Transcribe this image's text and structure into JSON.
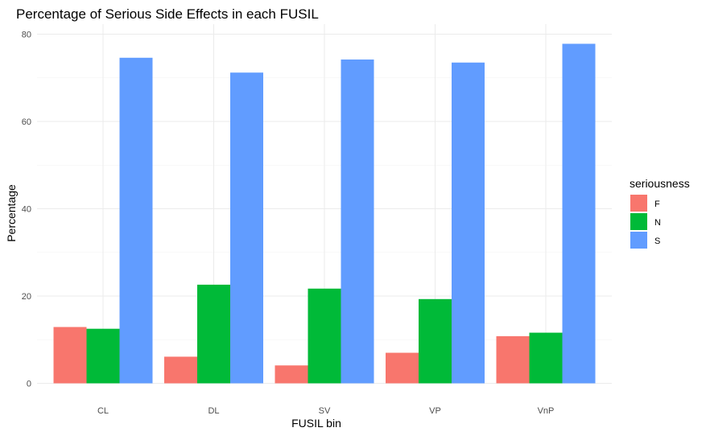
{
  "chart_data": {
    "type": "bar",
    "title": "Percentage of Serious Side Effects in each FUSIL",
    "xlabel": "FUSIL bin",
    "ylabel": "Percentage",
    "categories": [
      "CL",
      "DL",
      "SV",
      "VP",
      "VnP"
    ],
    "ylim": [
      0,
      80
    ],
    "yticks": [
      0,
      20,
      40,
      60,
      80
    ],
    "grid": true,
    "legend_title": "seriousness",
    "legend_position": "right",
    "series": [
      {
        "name": "F",
        "color": "#F8766D",
        "values": [
          12.9,
          6.1,
          4.1,
          7.0,
          10.8
        ]
      },
      {
        "name": "N",
        "color": "#00BA38",
        "values": [
          12.5,
          22.6,
          21.7,
          19.3,
          11.6
        ]
      },
      {
        "name": "S",
        "color": "#619CFF",
        "values": [
          74.6,
          71.2,
          74.2,
          73.5,
          77.8
        ]
      }
    ]
  }
}
